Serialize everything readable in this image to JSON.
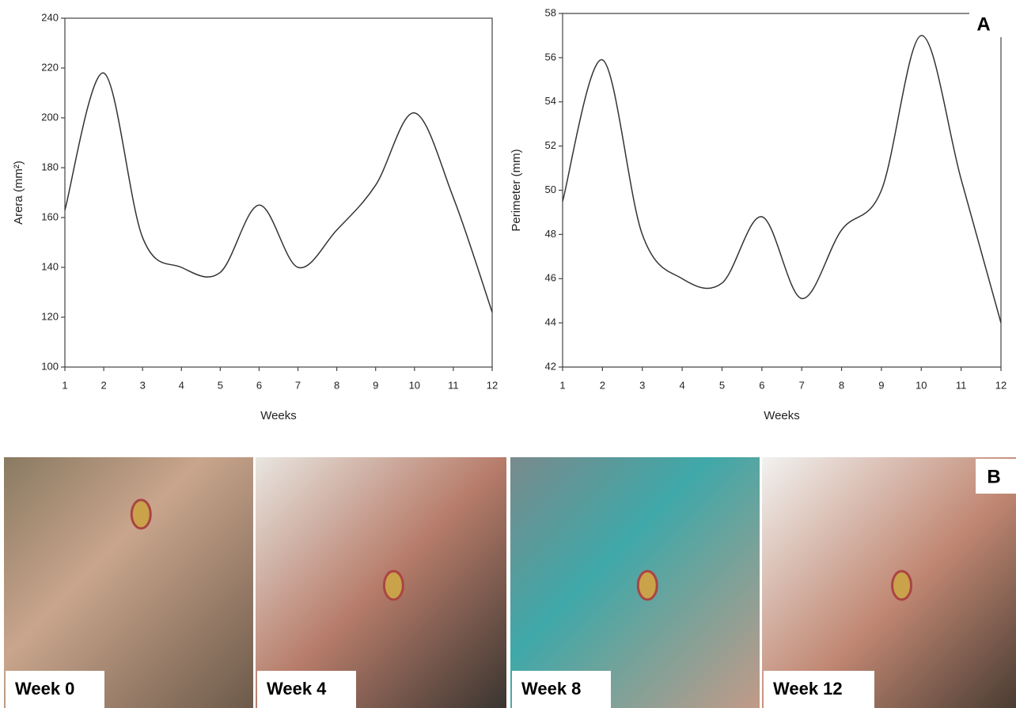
{
  "chart_data": [
    {
      "type": "line",
      "ylabel": "Arera (mm²)",
      "xlabel": "Weeks",
      "x": [
        1,
        2,
        3,
        4,
        5,
        6,
        7,
        8,
        9,
        10,
        11,
        12
      ],
      "values": [
        163,
        218,
        152,
        140,
        138,
        165,
        140,
        155,
        173,
        202,
        168,
        122
      ],
      "color": "#333333",
      "xlim": [
        1,
        12
      ],
      "xticks": [
        1,
        2,
        3,
        4,
        5,
        6,
        7,
        8,
        9,
        10,
        11,
        12
      ],
      "ylim": [
        100,
        240
      ],
      "yticks": [
        100,
        120,
        140,
        160,
        180,
        200,
        220,
        240
      ]
    },
    {
      "type": "line",
      "ylabel": "Perimeter (mm)",
      "xlabel": "Weeks",
      "x": [
        1,
        2,
        3,
        4,
        5,
        6,
        7,
        8,
        9,
        10,
        11,
        12
      ],
      "values": [
        49.5,
        55.9,
        48,
        46,
        45.8,
        48.8,
        45.1,
        48.2,
        50,
        57,
        50.5,
        44
      ],
      "color": "#333333",
      "xlim": [
        1,
        12
      ],
      "xticks": [
        1,
        2,
        3,
        4,
        5,
        6,
        7,
        8,
        9,
        10,
        11,
        12
      ],
      "ylim": [
        42,
        58
      ],
      "yticks": [
        42,
        44,
        46,
        48,
        50,
        52,
        54,
        56,
        58
      ]
    }
  ],
  "panels": {
    "a": "A",
    "b": "B"
  },
  "photos": [
    {
      "label": "Week 0"
    },
    {
      "label": "Week 4"
    },
    {
      "label": "Week 8"
    },
    {
      "label": "Week 12"
    }
  ]
}
